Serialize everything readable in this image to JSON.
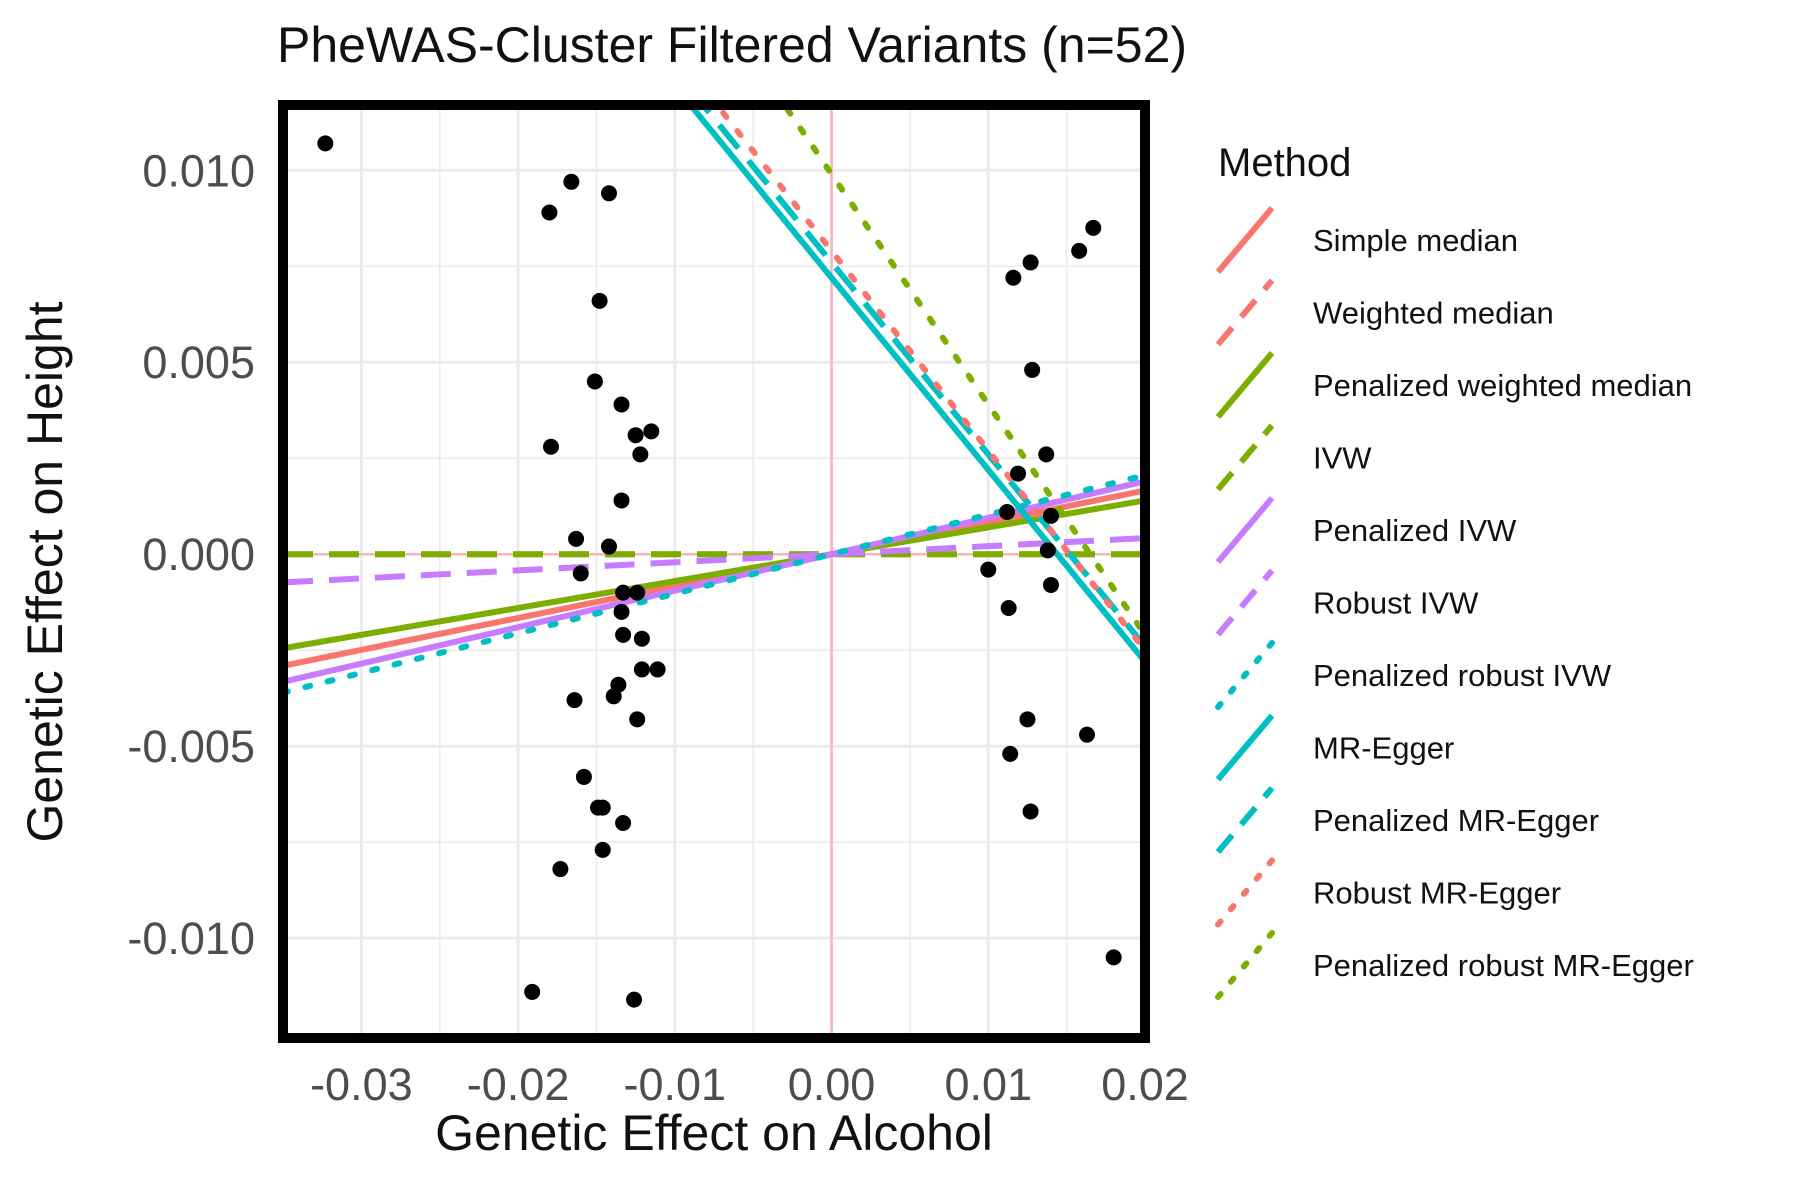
{
  "chart_data": {
    "type": "scatter",
    "title": "PheWAS-Cluster Filtered Variants (n=52)",
    "xlabel": "Genetic Effect on Alcohol",
    "ylabel": "Genetic Effect on Height",
    "xlim": [
      -0.035,
      0.02
    ],
    "ylim": [
      -0.0126,
      0.0117
    ],
    "x_ticks": [
      -0.03,
      -0.02,
      -0.01,
      0.0,
      0.01,
      0.02
    ],
    "x_tick_labels": [
      "-0.03",
      "-0.02",
      "-0.01",
      "0.00",
      "0.01",
      "0.02"
    ],
    "y_ticks": [
      -0.01,
      -0.005,
      0.0,
      0.005,
      0.01
    ],
    "y_tick_labels": [
      "-0.010",
      "-0.005",
      "0.000",
      "0.005",
      "0.010"
    ],
    "grid": true,
    "reference_lines": {
      "x": 0,
      "y": 0,
      "color": "#f4b8b8"
    },
    "points": [
      {
        "x": -0.0323,
        "y": 0.0107
      },
      {
        "x": -0.018,
        "y": 0.0089
      },
      {
        "x": -0.0166,
        "y": 0.0097
      },
      {
        "x": -0.0142,
        "y": 0.0094
      },
      {
        "x": -0.0148,
        "y": 0.0066
      },
      {
        "x": -0.0151,
        "y": 0.0045
      },
      {
        "x": -0.0179,
        "y": 0.0028
      },
      {
        "x": -0.0134,
        "y": 0.0039
      },
      {
        "x": -0.0125,
        "y": 0.0031
      },
      {
        "x": -0.0115,
        "y": 0.0032
      },
      {
        "x": -0.0122,
        "y": 0.0026
      },
      {
        "x": -0.0134,
        "y": 0.0014
      },
      {
        "x": -0.0163,
        "y": 0.0004
      },
      {
        "x": -0.0142,
        "y": 0.0002
      },
      {
        "x": -0.016,
        "y": -0.0005
      },
      {
        "x": -0.0133,
        "y": -0.001
      },
      {
        "x": -0.0124,
        "y": -0.001
      },
      {
        "x": -0.0134,
        "y": -0.0015
      },
      {
        "x": -0.0133,
        "y": -0.0021
      },
      {
        "x": -0.0121,
        "y": -0.0022
      },
      {
        "x": -0.0121,
        "y": -0.003
      },
      {
        "x": -0.0111,
        "y": -0.003
      },
      {
        "x": -0.0136,
        "y": -0.0034
      },
      {
        "x": -0.0139,
        "y": -0.0037
      },
      {
        "x": -0.0164,
        "y": -0.0038
      },
      {
        "x": -0.0124,
        "y": -0.0043
      },
      {
        "x": -0.0158,
        "y": -0.0058
      },
      {
        "x": -0.0149,
        "y": -0.0066
      },
      {
        "x": -0.0146,
        "y": -0.0066
      },
      {
        "x": -0.0133,
        "y": -0.007
      },
      {
        "x": -0.0146,
        "y": -0.0077
      },
      {
        "x": -0.0173,
        "y": -0.0082
      },
      {
        "x": -0.0191,
        "y": -0.0114
      },
      {
        "x": -0.0126,
        "y": -0.0116
      },
      {
        "x": 0.0116,
        "y": 0.0072
      },
      {
        "x": 0.0127,
        "y": 0.0076
      },
      {
        "x": 0.0158,
        "y": 0.0079
      },
      {
        "x": 0.0167,
        "y": 0.0085
      },
      {
        "x": 0.0128,
        "y": 0.0048
      },
      {
        "x": 0.0137,
        "y": 0.0026
      },
      {
        "x": 0.0119,
        "y": 0.0021
      },
      {
        "x": 0.0112,
        "y": 0.0011
      },
      {
        "x": 0.014,
        "y": 0.001
      },
      {
        "x": 0.01,
        "y": -0.0004
      },
      {
        "x": 0.014,
        "y": -0.0008
      },
      {
        "x": 0.0113,
        "y": -0.0014
      },
      {
        "x": 0.0125,
        "y": -0.0043
      },
      {
        "x": 0.0114,
        "y": -0.0052
      },
      {
        "x": 0.0163,
        "y": -0.0047
      },
      {
        "x": 0.0127,
        "y": -0.0067
      },
      {
        "x": 0.018,
        "y": -0.0105
      },
      {
        "x": 0.0138,
        "y": 0.0001
      }
    ],
    "legend": {
      "title": "Method",
      "placement": "right"
    },
    "series": [
      {
        "name": "Simple median",
        "type": "line",
        "intercept": 0.0,
        "slope": 0.083,
        "color": "#f8766d",
        "dash": "solid"
      },
      {
        "name": "Weighted median",
        "type": "line",
        "intercept": 0.0,
        "slope": 0.0,
        "color": "#f8766d",
        "dash": "dashed"
      },
      {
        "name": "Penalized weighted median",
        "type": "line",
        "intercept": 0.0,
        "slope": 0.07,
        "color": "#7cae00",
        "dash": "solid"
      },
      {
        "name": "IVW",
        "type": "line",
        "intercept": 0.0,
        "slope": 0.0,
        "color": "#7cae00",
        "dash": "dashed"
      },
      {
        "name": "Penalized IVW",
        "type": "line",
        "intercept": 0.0,
        "slope": 0.095,
        "color": "#c77cff",
        "dash": "solid"
      },
      {
        "name": "Robust IVW",
        "type": "line",
        "intercept": 0.0,
        "slope": 0.021,
        "color": "#c77cff",
        "dash": "dashed"
      },
      {
        "name": "Penalized robust IVW",
        "type": "line",
        "intercept": 0.0,
        "slope": 0.103,
        "color": "#00bfc4",
        "dash": "dotted"
      },
      {
        "name": "MR-Egger",
        "type": "line",
        "intercept": 0.0072,
        "slope": -0.5,
        "color": "#00bfc4",
        "dash": "solid"
      },
      {
        "name": "Penalized MR-Egger",
        "type": "line",
        "intercept": 0.0076,
        "slope": -0.5,
        "color": "#00bfc4",
        "dash": "dashed"
      },
      {
        "name": "Robust MR-Egger",
        "type": "line",
        "intercept": 0.0079,
        "slope": -0.52,
        "color": "#f8766d",
        "dash": "dotted"
      },
      {
        "name": "Penalized robust MR-Egger",
        "type": "line",
        "intercept": 0.0099,
        "slope": -0.6,
        "color": "#7cae00",
        "dash": "dotted"
      }
    ]
  }
}
